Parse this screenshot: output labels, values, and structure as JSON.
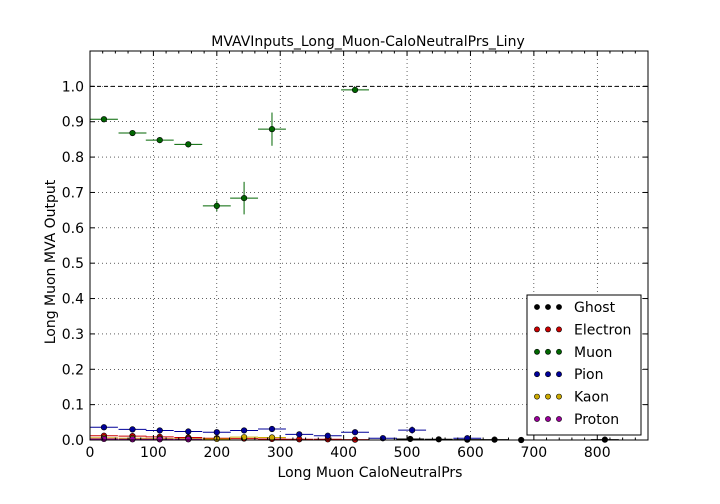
{
  "chart_data": {
    "type": "scatter",
    "title": "MVAVInputs_Long_Muon-CaloNeutralPrs_Liny",
    "xlabel": "Long Muon CaloNeutralPrs",
    "ylabel": "Long Muon MVA Output",
    "xlim": [
      0,
      880
    ],
    "ylim": [
      0,
      1.1
    ],
    "xticks": [
      0,
      100,
      200,
      300,
      400,
      500,
      600,
      700,
      800
    ],
    "yticks": [
      0.0,
      0.1,
      0.2,
      0.3,
      0.4,
      0.5,
      0.6,
      0.7,
      0.8,
      0.9,
      1.0
    ],
    "xtick_labels": [
      "0",
      "100",
      "200",
      "300",
      "400",
      "500",
      "600",
      "700",
      "800"
    ],
    "ytick_labels": [
      "0.0",
      "0.1",
      "0.2",
      "0.3",
      "0.4",
      "0.5",
      "0.6",
      "0.7",
      "0.8",
      "0.9",
      "1.0"
    ],
    "grid": true,
    "reference_line": 1.0,
    "legend_position": "lower-right",
    "series": [
      {
        "name": "Ghost",
        "color": "#000000",
        "points": [
          {
            "x": 505,
            "y": 0.003,
            "xerr": 22,
            "yerr": 0.002
          },
          {
            "x": 550,
            "y": 0.002,
            "xerr": 22,
            "yerr": 0.002
          },
          {
            "x": 595,
            "y": 0.001,
            "xerr": 22,
            "yerr": 0.001
          },
          {
            "x": 638,
            "y": 0.001,
            "xerr": 22,
            "yerr": 0.001
          },
          {
            "x": 680,
            "y": 0.0,
            "xerr": 22,
            "yerr": 0.001
          },
          {
            "x": 812,
            "y": 0.001,
            "xerr": 22,
            "yerr": 0.001
          }
        ]
      },
      {
        "name": "Electron",
        "color": "#cc0000",
        "points": [
          {
            "x": 22,
            "y": 0.012,
            "xerr": 22,
            "yerr": 0.002
          },
          {
            "x": 67,
            "y": 0.011,
            "xerr": 22,
            "yerr": 0.002
          },
          {
            "x": 110,
            "y": 0.009,
            "xerr": 22,
            "yerr": 0.002
          },
          {
            "x": 155,
            "y": 0.007,
            "xerr": 22,
            "yerr": 0.002
          },
          {
            "x": 200,
            "y": 0.005,
            "xerr": 22,
            "yerr": 0.002
          },
          {
            "x": 243,
            "y": 0.004,
            "xerr": 22,
            "yerr": 0.002
          },
          {
            "x": 287,
            "y": 0.003,
            "xerr": 22,
            "yerr": 0.002
          },
          {
            "x": 330,
            "y": 0.002,
            "xerr": 22,
            "yerr": 0.001
          },
          {
            "x": 375,
            "y": 0.002,
            "xerr": 22,
            "yerr": 0.001
          },
          {
            "x": 418,
            "y": 0.001,
            "xerr": 22,
            "yerr": 0.001
          }
        ]
      },
      {
        "name": "Muon",
        "color": "#006600",
        "points": [
          {
            "x": 22,
            "y": 0.907,
            "xerr": 22,
            "yerr": 0.003
          },
          {
            "x": 67,
            "y": 0.868,
            "xerr": 22,
            "yerr": 0.004
          },
          {
            "x": 110,
            "y": 0.848,
            "xerr": 22,
            "yerr": 0.005
          },
          {
            "x": 155,
            "y": 0.836,
            "xerr": 22,
            "yerr": 0.006
          },
          {
            "x": 200,
            "y": 0.662,
            "xerr": 22,
            "yerr": 0.015
          },
          {
            "x": 243,
            "y": 0.684,
            "xerr": 22,
            "yerr": 0.046
          },
          {
            "x": 287,
            "y": 0.879,
            "xerr": 22,
            "yerr": 0.047
          },
          {
            "x": 418,
            "y": 0.99,
            "xerr": 22,
            "yerr": 0.005
          }
        ]
      },
      {
        "name": "Pion",
        "color": "#000099",
        "points": [
          {
            "x": 22,
            "y": 0.036,
            "xerr": 22,
            "yerr": 0.002
          },
          {
            "x": 67,
            "y": 0.03,
            "xerr": 22,
            "yerr": 0.002
          },
          {
            "x": 110,
            "y": 0.027,
            "xerr": 22,
            "yerr": 0.002
          },
          {
            "x": 155,
            "y": 0.024,
            "xerr": 22,
            "yerr": 0.002
          },
          {
            "x": 200,
            "y": 0.022,
            "xerr": 22,
            "yerr": 0.002
          },
          {
            "x": 243,
            "y": 0.027,
            "xerr": 22,
            "yerr": 0.003
          },
          {
            "x": 287,
            "y": 0.031,
            "xerr": 22,
            "yerr": 0.003
          },
          {
            "x": 330,
            "y": 0.016,
            "xerr": 22,
            "yerr": 0.003
          },
          {
            "x": 375,
            "y": 0.012,
            "xerr": 22,
            "yerr": 0.003
          },
          {
            "x": 418,
            "y": 0.022,
            "xerr": 22,
            "yerr": 0.004
          },
          {
            "x": 462,
            "y": 0.005,
            "xerr": 22,
            "yerr": 0.002
          },
          {
            "x": 508,
            "y": 0.028,
            "xerr": 22,
            "yerr": 0.01
          },
          {
            "x": 595,
            "y": 0.005,
            "xerr": 22,
            "yerr": 0.002
          }
        ]
      },
      {
        "name": "Kaon",
        "color": "#ccaa00",
        "points": [
          {
            "x": 22,
            "y": 0.006,
            "xerr": 22,
            "yerr": 0.001
          },
          {
            "x": 67,
            "y": 0.005,
            "xerr": 22,
            "yerr": 0.001
          },
          {
            "x": 110,
            "y": 0.004,
            "xerr": 22,
            "yerr": 0.001
          },
          {
            "x": 155,
            "y": 0.004,
            "xerr": 22,
            "yerr": 0.001
          },
          {
            "x": 200,
            "y": 0.003,
            "xerr": 22,
            "yerr": 0.001
          },
          {
            "x": 243,
            "y": 0.008,
            "xerr": 22,
            "yerr": 0.002
          },
          {
            "x": 287,
            "y": 0.007,
            "xerr": 22,
            "yerr": 0.002
          }
        ]
      },
      {
        "name": "Proton",
        "color": "#990099",
        "points": [
          {
            "x": 22,
            "y": 0.003,
            "xerr": 22,
            "yerr": 0.001
          },
          {
            "x": 67,
            "y": 0.002,
            "xerr": 22,
            "yerr": 0.001
          },
          {
            "x": 110,
            "y": 0.002,
            "xerr": 22,
            "yerr": 0.001
          },
          {
            "x": 155,
            "y": 0.002,
            "xerr": 22,
            "yerr": 0.001
          }
        ]
      }
    ]
  }
}
